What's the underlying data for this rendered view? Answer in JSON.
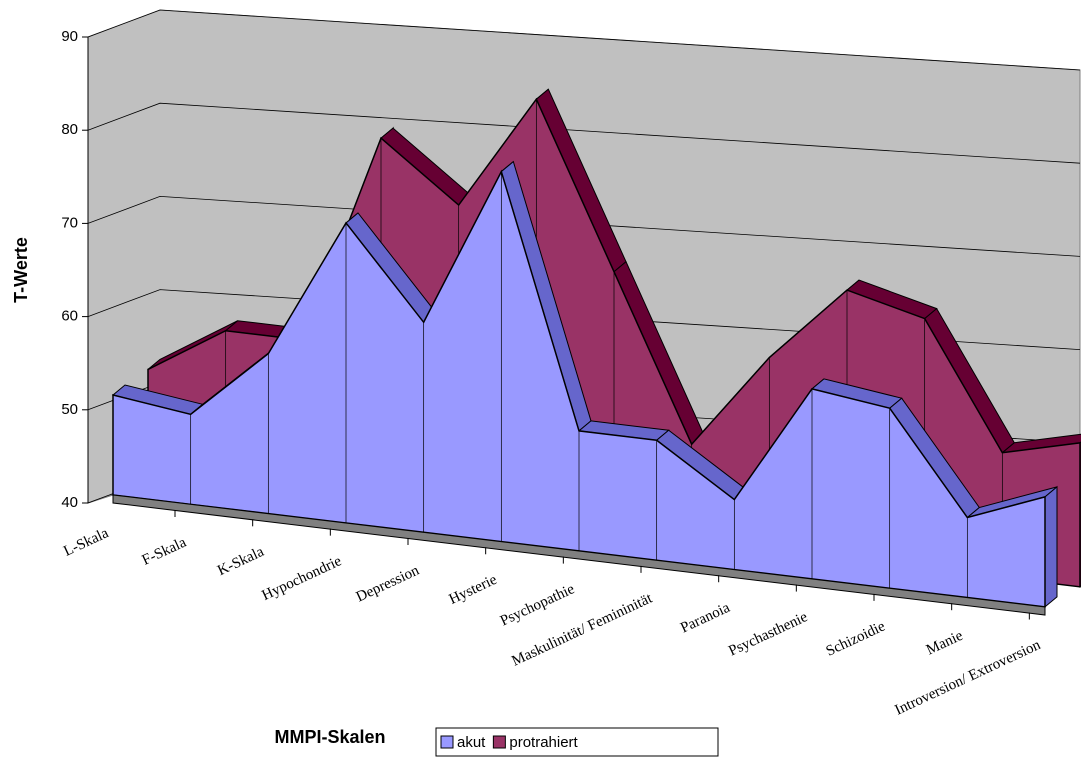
{
  "chart_data": {
    "type": "area3d",
    "x_label": "MMPI-Skalen",
    "y_label": "T-Werte",
    "categories": [
      "L-Skala",
      "F-Skala",
      "K-Skala",
      "Hypochondrie",
      "Depression",
      "Hysterie",
      "Psychopathie",
      "Maskulinität/ Femininität",
      "Paranoia",
      "Psychasthenie",
      "Schizoidie",
      "Manie",
      "Introversion/ Extroversion"
    ],
    "series": [
      {
        "name": "akut",
        "color": "#9999ff",
        "edge": "#6666cc",
        "values": [
          50,
          49,
          56,
          70,
          61,
          77,
          52,
          52,
          47,
          59,
          58,
          48,
          51
        ]
      },
      {
        "name": "protrahiert",
        "color": "#993366",
        "edge": "#660033",
        "values": [
          51,
          56,
          56,
          78,
          72,
          84,
          67,
          50,
          60,
          68,
          66,
          53,
          55
        ]
      }
    ],
    "ylim": [
      40,
      90
    ],
    "yticks": [
      40,
      50,
      60,
      70,
      80,
      90
    ],
    "grid": true,
    "legend": "bottom"
  }
}
